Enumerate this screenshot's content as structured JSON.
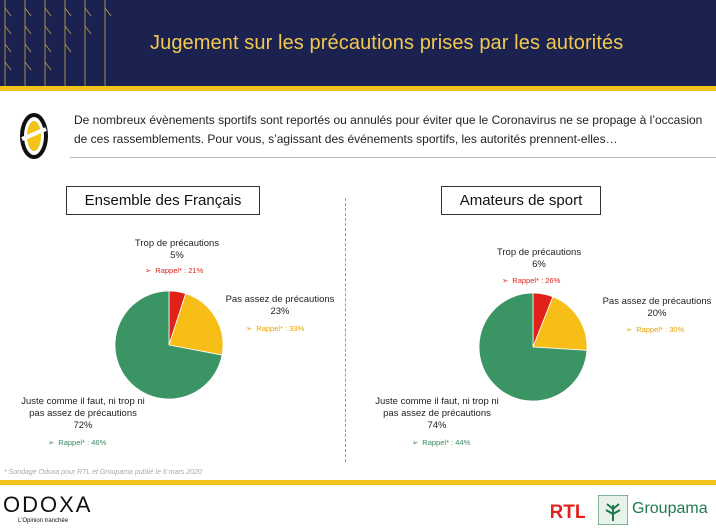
{
  "header": {
    "title": "Jugement sur les précautions prises par les autorités"
  },
  "question": {
    "text": "De nombreux évènements sportifs sont reportés ou annulés pour éviter que le Coronavirus ne se propage à l’occasion de ces rassemblements. Pour vous, s’agissant des événements sportifs, les autorités prennent-elles…"
  },
  "colors": {
    "navy": "#1b2250",
    "gold": "#f2c318",
    "red": "#e0221b",
    "yellow": "#f6be16",
    "green": "#3a9464"
  },
  "chart_data": [
    {
      "type": "pie",
      "title": "Ensemble des Français",
      "slices": [
        {
          "label": "Trop de précautions",
          "value": 5,
          "pct_label": "5%",
          "rappel": "Rappel* : 21%",
          "color": "red"
        },
        {
          "label": "Pas assez de précautions",
          "value": 23,
          "pct_label": "23%",
          "rappel": "Rappel* : 33%",
          "color": "yellow"
        },
        {
          "label": "Juste comme il faut, ni trop ni pas assez de précautions",
          "value": 72,
          "pct_label": "72%",
          "rappel": "Rappel* : 46%",
          "color": "green"
        }
      ]
    },
    {
      "type": "pie",
      "title": "Amateurs de sport",
      "slices": [
        {
          "label": "Trop de précautions",
          "value": 6,
          "pct_label": "6%",
          "rappel": "Rappel* : 26%",
          "color": "red"
        },
        {
          "label": "Pas assez de précautions",
          "value": 20,
          "pct_label": "20%",
          "rappel": "Rappel* : 30%",
          "color": "yellow"
        },
        {
          "label": "Juste comme il faut, ni trop ni pas assez de précautions",
          "value": 74,
          "pct_label": "74%",
          "rappel": "Rappel* : 44%",
          "color": "green"
        }
      ]
    }
  ],
  "labels": {
    "green_line1": "Juste comme il faut, ni trop ni",
    "green_line2": "pas assez de précautions"
  },
  "footnote": "* Sondage Odoxa pour RTL et Groupama publié le 6 mars 2020",
  "footer": {
    "odoxa": "ODOXA",
    "odoxa_tagline": "L’Opinion tranchée",
    "rtl": "RTL",
    "groupama": "Groupama"
  }
}
